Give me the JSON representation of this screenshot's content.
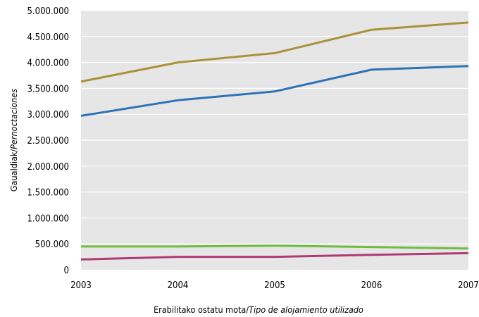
{
  "chart_data": {
    "type": "line",
    "x": [
      2003,
      2004,
      2005,
      2006,
      2007
    ],
    "x_tick_labels": [
      "2003",
      "2004",
      "2005",
      "2006",
      "2007"
    ],
    "ylim": [
      0,
      5000000
    ],
    "y_ticks": [
      0,
      500000,
      1000000,
      1500000,
      2000000,
      2500000,
      3000000,
      3500000,
      4000000,
      4500000,
      5000000
    ],
    "y_tick_labels": [
      "0",
      "500.000",
      "1.000.000",
      "1.500.000",
      "2.000.000",
      "2.500.000",
      "3.000.000",
      "3.500.000",
      "4.000.000",
      "4.500.000",
      "5.000.000"
    ],
    "ylabel": {
      "plain": "Gaualdiak/",
      "italic": "Pernoctaciones"
    },
    "xlabel": {
      "plain": "Erabilitako ostatu mota/",
      "italic": "Tipo de alojamiento utilizado"
    },
    "grid": "horizontal",
    "background": "#e6e6e6",
    "series": [
      {
        "color": "#a9923a",
        "values": [
          3630000,
          4000000,
          4180000,
          4630000,
          4770000
        ]
      },
      {
        "color": "#2e72b6",
        "values": [
          2970000,
          3270000,
          3440000,
          3860000,
          3930000
        ]
      },
      {
        "color": "#6fbd3f",
        "values": [
          450000,
          450000,
          465000,
          440000,
          410000
        ]
      },
      {
        "color": "#b03a75",
        "values": [
          200000,
          250000,
          250000,
          290000,
          320000
        ]
      }
    ]
  }
}
